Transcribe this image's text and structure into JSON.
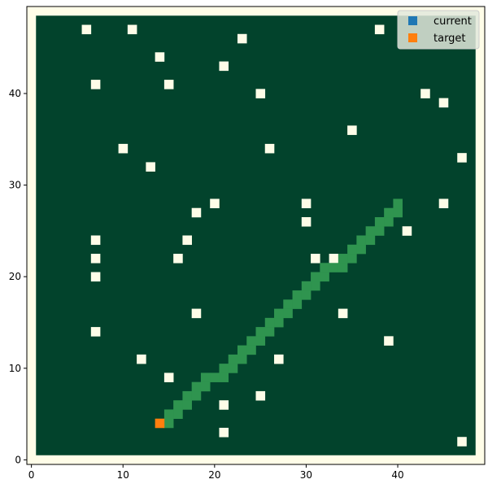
{
  "colors": {
    "border_bg": "#fffde8",
    "field": "#02432c",
    "obstacle": "#fefde8",
    "path": "#2f944f",
    "current": "#1f77b4",
    "target": "#ff7f0e"
  },
  "legend": {
    "position": "top-right",
    "items": [
      {
        "label": "current",
        "color": "#1f77b4"
      },
      {
        "label": "target",
        "color": "#ff7f0e"
      }
    ]
  },
  "chart_data": {
    "type": "heatmap",
    "title": "",
    "xlabel": "",
    "ylabel": "",
    "grid_size": 50,
    "xlim": [
      -0.5,
      49.5
    ],
    "ylim": [
      -0.5,
      49.5
    ],
    "field_extent": [
      1,
      48
    ],
    "x_ticks": [
      0,
      10,
      20,
      30,
      40
    ],
    "y_ticks": [
      0,
      10,
      20,
      30,
      40
    ],
    "obstacles": [
      [
        6,
        47
      ],
      [
        11,
        47
      ],
      [
        38,
        47
      ],
      [
        23,
        46
      ],
      [
        14,
        44
      ],
      [
        21,
        43
      ],
      [
        7,
        41
      ],
      [
        15,
        41
      ],
      [
        25,
        40
      ],
      [
        43,
        40
      ],
      [
        45,
        39
      ],
      [
        35,
        36
      ],
      [
        10,
        34
      ],
      [
        26,
        34
      ],
      [
        47,
        33
      ],
      [
        13,
        32
      ],
      [
        20,
        28
      ],
      [
        30,
        28
      ],
      [
        45,
        28
      ],
      [
        18,
        27
      ],
      [
        30,
        26
      ],
      [
        41,
        25
      ],
      [
        7,
        24
      ],
      [
        17,
        24
      ],
      [
        7,
        22
      ],
      [
        16,
        22
      ],
      [
        31,
        22
      ],
      [
        33,
        22
      ],
      [
        7,
        20
      ],
      [
        18,
        16
      ],
      [
        34,
        16
      ],
      [
        7,
        14
      ],
      [
        39,
        13
      ],
      [
        12,
        11
      ],
      [
        27,
        11
      ],
      [
        15,
        9
      ],
      [
        25,
        7
      ],
      [
        21,
        6
      ],
      [
        21,
        3
      ],
      [
        47,
        2
      ]
    ],
    "path": [
      [
        15,
        4
      ],
      [
        15,
        5
      ],
      [
        16,
        5
      ],
      [
        16,
        6
      ],
      [
        17,
        6
      ],
      [
        17,
        7
      ],
      [
        18,
        7
      ],
      [
        18,
        8
      ],
      [
        19,
        8
      ],
      [
        19,
        9
      ],
      [
        20,
        9
      ],
      [
        21,
        9
      ],
      [
        21,
        10
      ],
      [
        22,
        10
      ],
      [
        22,
        11
      ],
      [
        23,
        11
      ],
      [
        23,
        12
      ],
      [
        24,
        12
      ],
      [
        24,
        13
      ],
      [
        25,
        13
      ],
      [
        25,
        14
      ],
      [
        26,
        14
      ],
      [
        26,
        15
      ],
      [
        27,
        15
      ],
      [
        27,
        16
      ],
      [
        28,
        16
      ],
      [
        28,
        17
      ],
      [
        29,
        17
      ],
      [
        29,
        18
      ],
      [
        30,
        18
      ],
      [
        30,
        19
      ],
      [
        31,
        19
      ],
      [
        31,
        20
      ],
      [
        32,
        20
      ],
      [
        32,
        21
      ],
      [
        33,
        21
      ],
      [
        34,
        21
      ],
      [
        34,
        22
      ],
      [
        35,
        22
      ],
      [
        35,
        23
      ],
      [
        36,
        23
      ],
      [
        36,
        24
      ],
      [
        37,
        24
      ],
      [
        37,
        25
      ],
      [
        38,
        25
      ],
      [
        38,
        26
      ],
      [
        39,
        26
      ],
      [
        39,
        27
      ],
      [
        40,
        27
      ],
      [
        40,
        28
      ]
    ],
    "current": [],
    "target": [
      14,
      4
    ]
  }
}
